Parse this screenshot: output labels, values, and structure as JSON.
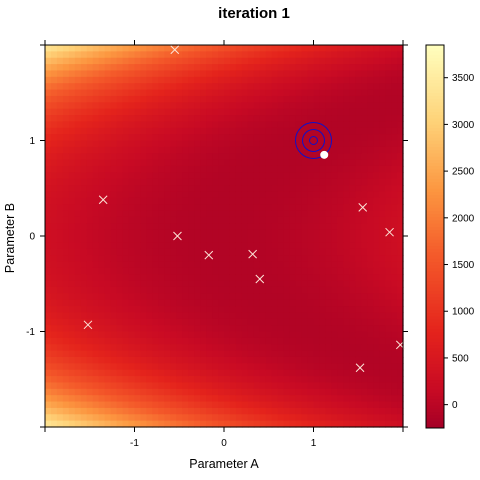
{
  "chart_data": {
    "type": "heatmap",
    "title": "iteration   1",
    "xlabel": "Parameter A",
    "ylabel": "Parameter B",
    "xlim": [
      -2,
      2
    ],
    "ylim": [
      -2,
      2
    ],
    "x_ticks": [
      -1,
      0,
      1
    ],
    "x_tick_labels": [
      "-1",
      "0",
      "1"
    ],
    "y_ticks": [
      -1,
      0,
      1
    ],
    "y_tick_labels": [
      "-1",
      "0",
      "1"
    ],
    "surface": {
      "description_formula": "z = 100*(x^2 - y)^2 ... shaped valley",
      "z_range": [
        -250,
        3850
      ]
    },
    "colorbar": {
      "ticks": [
        0,
        500,
        1000,
        1500,
        2000,
        2500,
        3000,
        3500
      ],
      "tick_labels": [
        "0",
        "500",
        "1000",
        "1500",
        "2000",
        "2500",
        "3000",
        "3500"
      ],
      "range": [
        -250,
        3850
      ]
    },
    "particles": [
      {
        "x": -0.55,
        "y": 1.95
      },
      {
        "x": -1.35,
        "y": 0.38
      },
      {
        "x": -0.52,
        "y": 0.0
      },
      {
        "x": -0.17,
        "y": -0.2
      },
      {
        "x": 0.32,
        "y": -0.19
      },
      {
        "x": 0.4,
        "y": -0.45
      },
      {
        "x": -1.52,
        "y": -0.93
      },
      {
        "x": 1.55,
        "y": 0.3
      },
      {
        "x": 1.85,
        "y": 0.04
      },
      {
        "x": 1.97,
        "y": -1.14
      },
      {
        "x": 1.52,
        "y": -1.38
      }
    ],
    "best_point": {
      "x": 1.12,
      "y": 0.85
    },
    "target": {
      "x": 1.0,
      "y": 1.0
    },
    "grid": false,
    "legend": "colorbar right"
  }
}
